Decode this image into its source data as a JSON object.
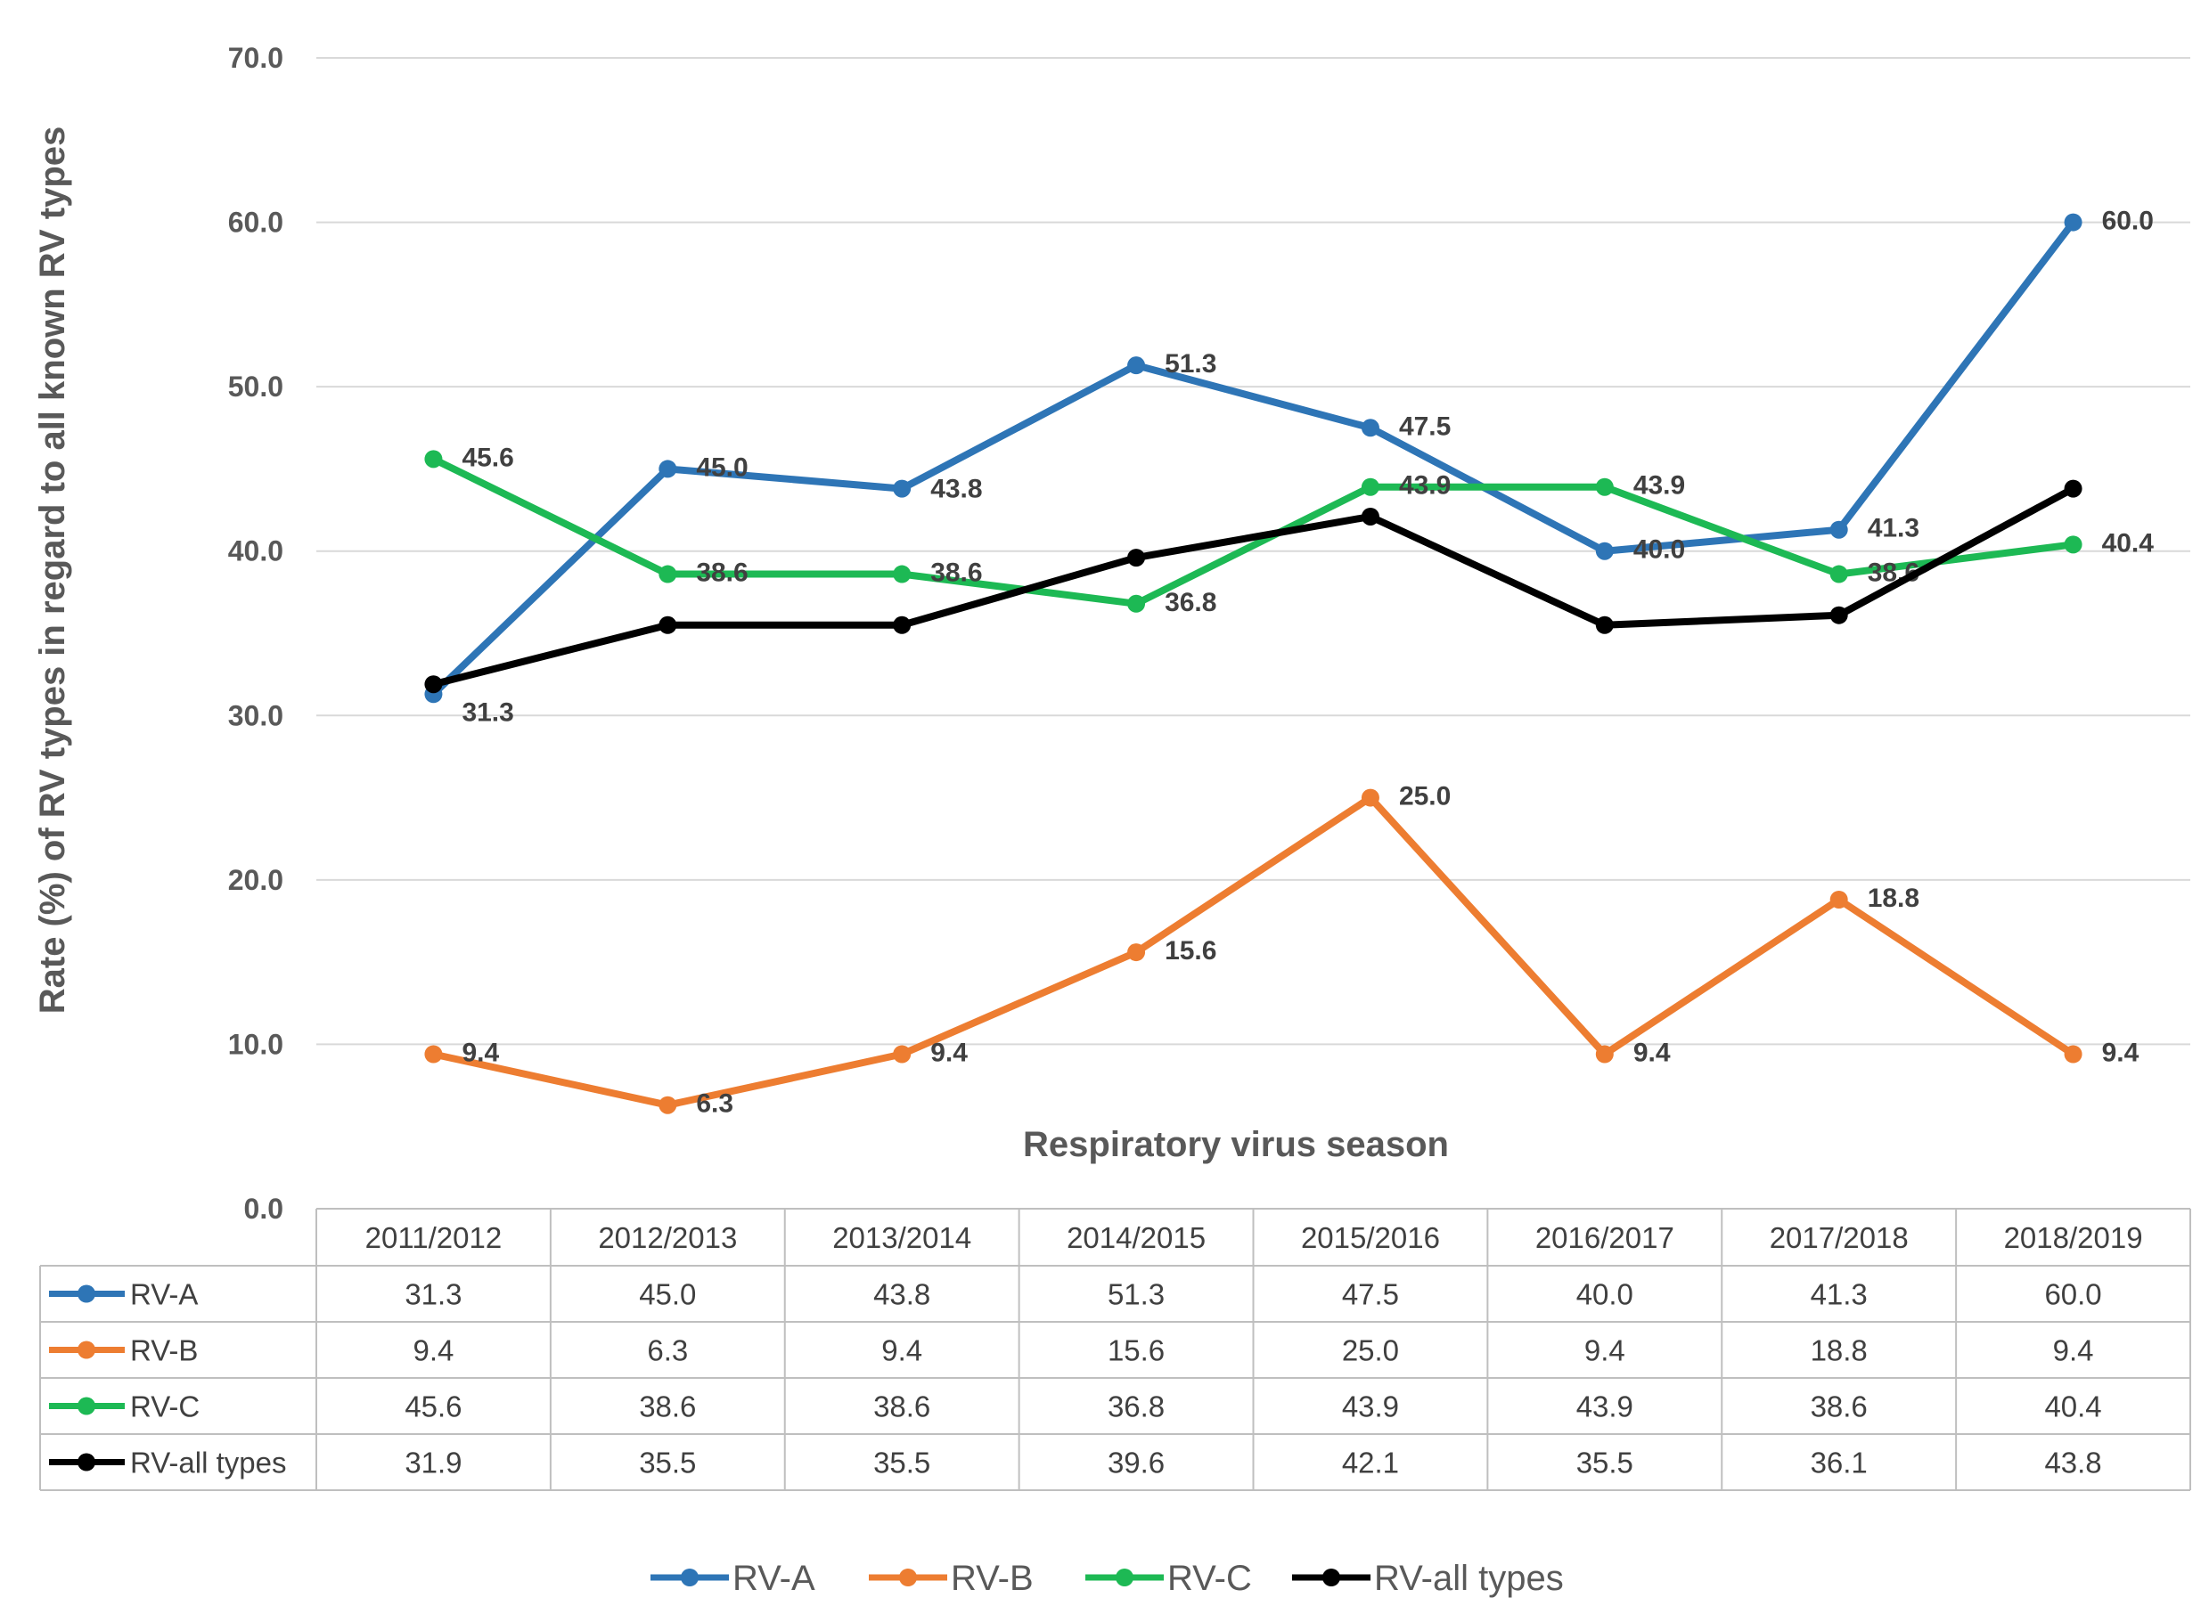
{
  "chart_data": {
    "type": "line",
    "title": "",
    "xlabel": "Respiratory virus season",
    "ylabel": "Rate (%) of RV types in regard to all known RV types",
    "ylim": [
      0,
      70
    ],
    "yticks": [
      "0.0",
      "10.0",
      "20.0",
      "30.0",
      "40.0",
      "50.0",
      "60.0",
      "70.0"
    ],
    "grid": true,
    "legend": "bottom",
    "categories": [
      "2011/2012",
      "2012/2013",
      "2013/2014",
      "2014/2015",
      "2015/2016",
      "2016/2017",
      "2017/2018",
      "2018/2019"
    ],
    "series": [
      {
        "name": "RV-A",
        "color": "#2E75B6",
        "values": [
          31.3,
          45.0,
          43.8,
          51.3,
          47.5,
          40.0,
          41.3,
          60.0
        ],
        "data_labels": true
      },
      {
        "name": "RV-B",
        "color": "#ED7D31",
        "values": [
          9.4,
          6.3,
          9.4,
          15.6,
          25.0,
          9.4,
          18.8,
          9.4
        ],
        "data_labels": true
      },
      {
        "name": "RV-C",
        "color": "#1DB954",
        "values": [
          45.6,
          38.6,
          38.6,
          36.8,
          43.9,
          43.9,
          38.6,
          40.4
        ],
        "data_labels": true
      },
      {
        "name": "RV-all types",
        "color": "#000000",
        "values": [
          31.9,
          35.5,
          35.5,
          39.6,
          42.1,
          35.5,
          36.1,
          43.8
        ],
        "data_labels": false
      }
    ],
    "table": {
      "rows": [
        {
          "name": "RV-A",
          "cells": [
            "31.3",
            "45.0",
            "43.8",
            "51.3",
            "47.5",
            "40.0",
            "41.3",
            "60.0"
          ]
        },
        {
          "name": "RV-B",
          "cells": [
            "9.4",
            "6.3",
            "9.4",
            "15.6",
            "25.0",
            "9.4",
            "18.8",
            "9.4"
          ]
        },
        {
          "name": "RV-C",
          "cells": [
            "45.6",
            "38.6",
            "38.6",
            "36.8",
            "43.9",
            "43.9",
            "38.6",
            "40.4"
          ]
        },
        {
          "name": "RV-all types",
          "cells": [
            "31.9",
            "35.5",
            "35.5",
            "39.6",
            "42.1",
            "35.5",
            "36.1",
            "43.8"
          ]
        }
      ]
    }
  }
}
